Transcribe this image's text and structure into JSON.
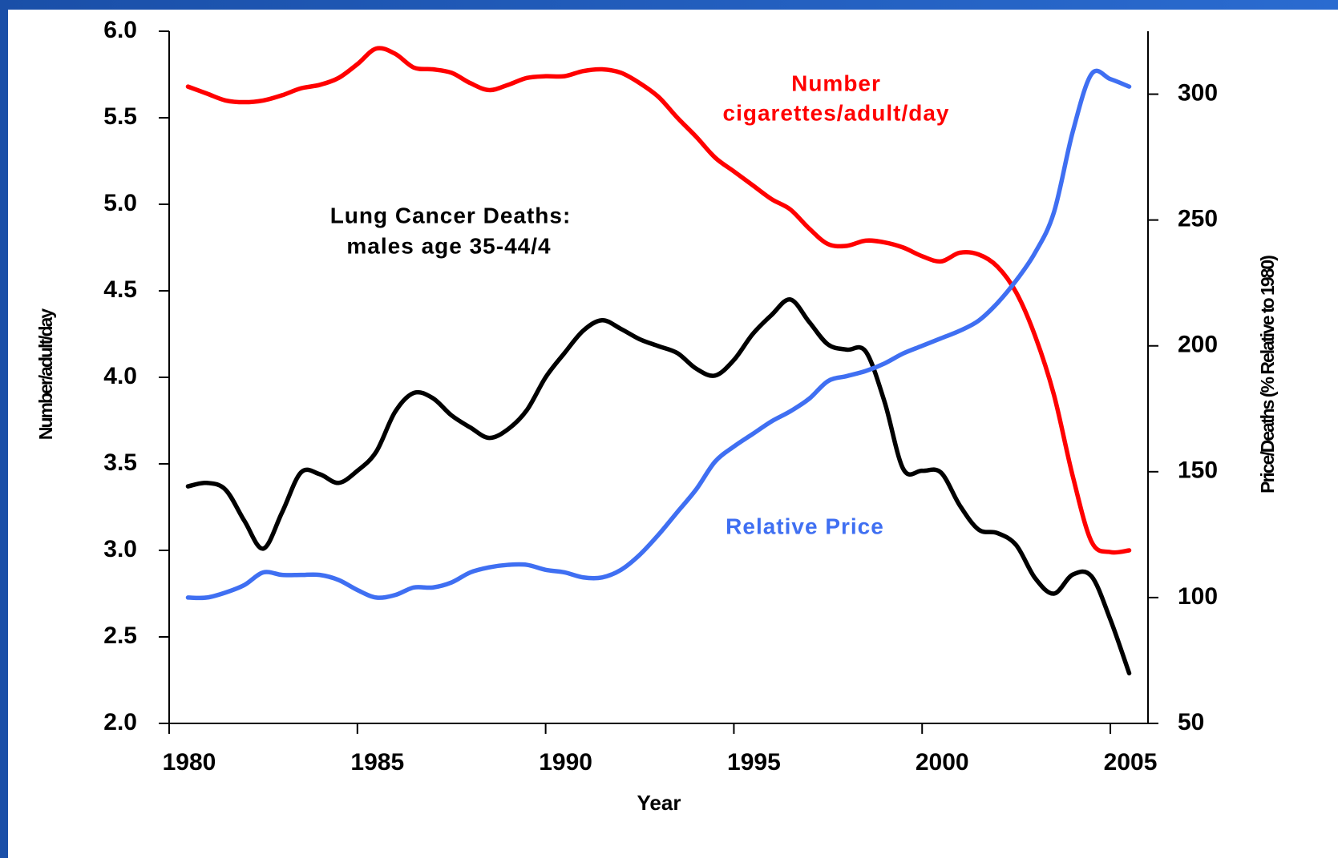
{
  "chart_data": {
    "type": "line",
    "xlabel": "Year",
    "ylabel": "Number/adult/day",
    "y2label": "Price/Deaths (% Relative to 1980)",
    "annotations": [
      {
        "text": "Number",
        "series": 0
      },
      {
        "text": "cigarettes/adult/day",
        "series": 0
      },
      {
        "text": "Lung Cancer Deaths:",
        "series": 1
      },
      {
        "text": "males age 35-44/4",
        "series": 1
      },
      {
        "text": "Relative Price",
        "series": 2
      }
    ],
    "x": [
      1980.5,
      1981,
      1981.5,
      1982,
      1982.5,
      1983,
      1983.5,
      1984,
      1984.5,
      1985,
      1985.5,
      1986,
      1986.5,
      1987,
      1987.5,
      1988,
      1988.5,
      1989,
      1989.5,
      1990,
      1990.5,
      1991,
      1991.5,
      1992,
      1992.5,
      1993,
      1993.5,
      1994,
      1994.5,
      1995,
      1995.5,
      1996,
      1996.5,
      1997,
      1997.5,
      1998,
      1998.5,
      1999,
      1999.5,
      2000,
      2000.5,
      2001,
      2001.5,
      2002,
      2002.5,
      2003,
      2003.5,
      2004,
      2004.5,
      2005,
      2005.5
    ],
    "series": [
      {
        "color": "#ff0000",
        "values": [
          5.68,
          5.64,
          5.6,
          5.59,
          5.6,
          5.63,
          5.67,
          5.69,
          5.73,
          5.81,
          5.9,
          5.87,
          5.79,
          5.78,
          5.76,
          5.7,
          5.66,
          5.69,
          5.73,
          5.74,
          5.74,
          5.77,
          5.78,
          5.76,
          5.7,
          5.62,
          5.5,
          5.39,
          5.27,
          5.19,
          5.11,
          5.03,
          4.97,
          4.86,
          4.77,
          4.76,
          4.79,
          4.78,
          4.75,
          4.7,
          4.67,
          4.72,
          4.71,
          4.64,
          4.49,
          4.24,
          3.9,
          3.43,
          3.05,
          2.99,
          3.0
        ]
      },
      {
        "color": "#000000",
        "values": [
          3.37,
          3.39,
          3.35,
          3.17,
          3.01,
          3.22,
          3.45,
          3.44,
          3.39,
          3.46,
          3.57,
          3.8,
          3.91,
          3.88,
          3.78,
          3.71,
          3.65,
          3.7,
          3.81,
          4.0,
          4.14,
          4.27,
          4.33,
          4.28,
          4.22,
          4.18,
          4.14,
          4.05,
          4.01,
          4.1,
          4.25,
          4.36,
          4.45,
          4.32,
          4.19,
          4.16,
          4.15,
          3.86,
          3.47,
          3.46,
          3.45,
          3.26,
          3.12,
          3.1,
          3.03,
          2.84,
          2.75,
          2.86,
          2.85,
          2.6,
          2.29
        ]
      },
      {
        "color": "#3f6ff2",
        "axis": "y2",
        "values": [
          100,
          100,
          102,
          105,
          110,
          109,
          109,
          109,
          107,
          103,
          100,
          101,
          104,
          104,
          106,
          110,
          112,
          113,
          113,
          111,
          110,
          108,
          108,
          111,
          117,
          125,
          134,
          143,
          154,
          160,
          165,
          170,
          174,
          179,
          186,
          188,
          190,
          193,
          197,
          200,
          203,
          206,
          210,
          217,
          226,
          237,
          253,
          285,
          308,
          306,
          303
        ]
      }
    ],
    "xlim": [
      1980,
      2006
    ],
    "xticks": [
      1980,
      1985,
      1990,
      1995,
      2000,
      2005
    ],
    "ylim": [
      2,
      6
    ],
    "yticks": [
      {
        "value": 2,
        "label": "2.0"
      },
      2.5,
      {
        "value": 3,
        "label": "3.0"
      },
      3.5,
      {
        "value": 4,
        "label": "4.0"
      },
      4.5,
      {
        "value": 5,
        "label": "5.0"
      },
      5.5,
      {
        "value": 6,
        "label": "6.0"
      }
    ],
    "y2lim": [
      50,
      325
    ],
    "y2ticks": [
      50,
      100,
      150,
      200,
      250,
      300
    ]
  }
}
